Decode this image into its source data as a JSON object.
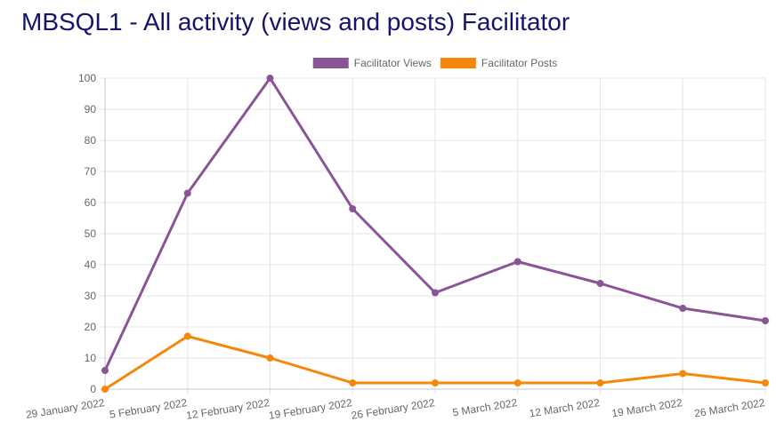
{
  "page": {
    "title": "MBSQL1 - All activity (views and posts) Facilitator"
  },
  "chart_data": {
    "type": "line",
    "title": "MBSQL1 - All activity (views and posts) Facilitator",
    "xlabel": "",
    "ylabel": "",
    "categories": [
      "29 January 2022",
      "5 February 2022",
      "12 February 2022",
      "19 February 2022",
      "26 February 2022",
      "5 March 2022",
      "12 March 2022",
      "19 March 2022",
      "26 March 2022"
    ],
    "series": [
      {
        "name": "Facilitator Views",
        "color": "#8a5596",
        "values": [
          6,
          63,
          100,
          58,
          31,
          41,
          34,
          26,
          22
        ]
      },
      {
        "name": "Facilitator Posts",
        "color": "#f5870a",
        "values": [
          0,
          17,
          10,
          2,
          2,
          2,
          2,
          5,
          2
        ]
      }
    ],
    "ylim": [
      0,
      100
    ],
    "yticks": [
      0,
      10,
      20,
      30,
      40,
      50,
      60,
      70,
      80,
      90,
      100
    ],
    "grid": true,
    "legend_position": "top"
  }
}
